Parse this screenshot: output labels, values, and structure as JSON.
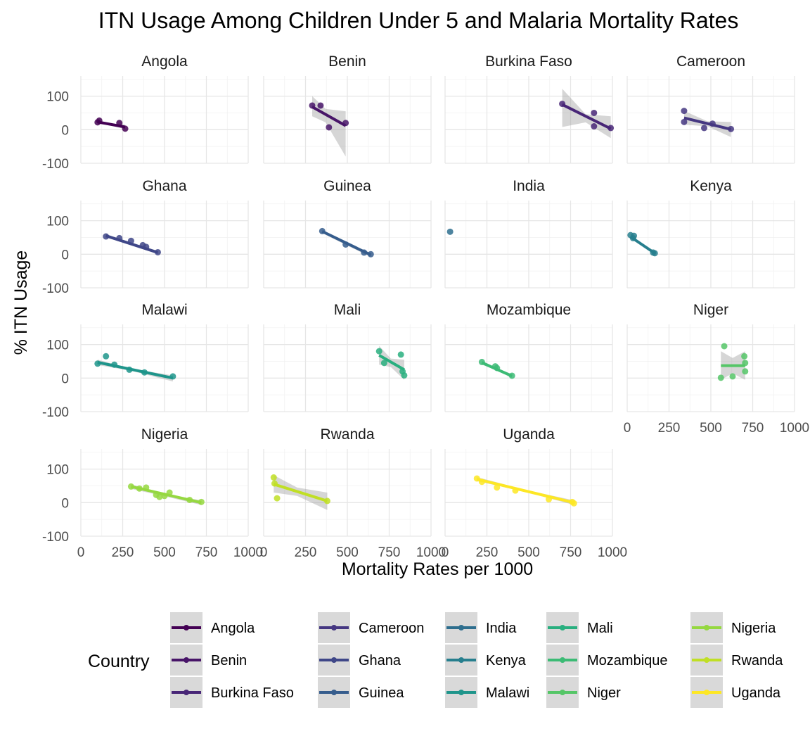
{
  "chart_data": {
    "type": "scatter",
    "title": "ITN Usage Among Children Under 5 and Malaria Mortality Rates",
    "xlabel": "Mortality Rates per 1000",
    "ylabel": "% ITN Usage",
    "xlim": [
      0,
      1000
    ],
    "ylim": [
      -100,
      160
    ],
    "x_ticks": [
      "0",
      "250",
      "500",
      "750",
      "1000"
    ],
    "y_ticks": [
      "100",
      "0",
      "-100"
    ],
    "grid": true,
    "legend": {
      "title": "Country",
      "position": "bottom",
      "items": [
        "Angola",
        "Benin",
        "Burkina Faso",
        "Cameroon",
        "Ghana",
        "Guinea",
        "India",
        "Kenya",
        "Malawi",
        "Mali",
        "Mozambique",
        "Niger",
        "Nigeria",
        "Rwanda",
        "Uganda"
      ]
    },
    "panels": [
      {
        "country": "Angola",
        "color": "#440154",
        "points": [
          [
            100,
            22
          ],
          [
            110,
            27
          ],
          [
            230,
            20
          ],
          [
            265,
            3
          ]
        ],
        "fit": [
          [
            100,
            23
          ],
          [
            265,
            8
          ]
        ],
        "band": [
          [
            100,
            28,
            17
          ],
          [
            180,
            19,
            13
          ],
          [
            265,
            15,
            1
          ]
        ]
      },
      {
        "country": "Benin",
        "color": "#481568",
        "points": [
          [
            290,
            72
          ],
          [
            340,
            72
          ],
          [
            390,
            7
          ],
          [
            490,
            20
          ]
        ],
        "fit": [
          [
            290,
            68
          ],
          [
            490,
            12
          ]
        ],
        "band": [
          [
            290,
            100,
            40
          ],
          [
            370,
            62,
            22
          ],
          [
            490,
            55,
            -80
          ]
        ]
      },
      {
        "country": "Burkina Faso",
        "color": "#482677",
        "points": [
          [
            700,
            77
          ],
          [
            890,
            50
          ],
          [
            890,
            10
          ],
          [
            990,
            5
          ]
        ],
        "fit": [
          [
            700,
            75
          ],
          [
            990,
            3
          ]
        ],
        "band": [
          [
            700,
            122,
            8
          ],
          [
            840,
            46,
            22
          ],
          [
            990,
            40,
            -25
          ]
        ]
      },
      {
        "country": "Cameroon",
        "color": "#453781",
        "points": [
          [
            340,
            56
          ],
          [
            340,
            23
          ],
          [
            460,
            5
          ],
          [
            510,
            18
          ],
          [
            620,
            2
          ]
        ],
        "fit": [
          [
            340,
            35
          ],
          [
            620,
            1
          ]
        ],
        "band": [
          [
            340,
            56,
            15
          ],
          [
            480,
            25,
            10
          ],
          [
            620,
            23,
            -22
          ]
        ]
      },
      {
        "country": "Ghana",
        "color": "#3F4788",
        "points": [
          [
            150,
            53
          ],
          [
            230,
            48
          ],
          [
            300,
            40
          ],
          [
            370,
            27
          ],
          [
            390,
            22
          ],
          [
            460,
            6
          ]
        ],
        "fit": [
          [
            150,
            55
          ],
          [
            460,
            5
          ]
        ],
        "band": [
          [
            150,
            60,
            50
          ],
          [
            300,
            34,
            28
          ],
          [
            460,
            10,
            0
          ]
        ]
      },
      {
        "country": "Guinea",
        "color": "#365D8D",
        "points": [
          [
            350,
            69
          ],
          [
            490,
            29
          ],
          [
            600,
            5
          ],
          [
            640,
            0
          ]
        ],
        "fit": [
          [
            350,
            68
          ],
          [
            640,
            -2
          ]
        ],
        "band": [
          [
            350,
            73,
            63
          ],
          [
            490,
            36,
            28
          ],
          [
            640,
            4,
            -8
          ]
        ]
      },
      {
        "country": "India",
        "color": "#2E6E8E",
        "points": [
          [
            30,
            67
          ]
        ],
        "fit": [],
        "band": []
      },
      {
        "country": "Kenya",
        "color": "#277F8E",
        "points": [
          [
            20,
            57
          ],
          [
            35,
            48
          ],
          [
            40,
            55
          ],
          [
            155,
            5
          ],
          [
            165,
            3
          ]
        ],
        "fit": [
          [
            20,
            52
          ],
          [
            165,
            3
          ]
        ],
        "band": [
          [
            20,
            58,
            46
          ],
          [
            90,
            31,
            25
          ],
          [
            165,
            8,
            -2
          ]
        ]
      },
      {
        "country": "Malawi",
        "color": "#1F958B",
        "points": [
          [
            100,
            43
          ],
          [
            150,
            65
          ],
          [
            200,
            40
          ],
          [
            290,
            25
          ],
          [
            380,
            17
          ],
          [
            550,
            5
          ]
        ],
        "fit": [
          [
            100,
            47
          ],
          [
            550,
            0
          ]
        ],
        "band": [
          [
            100,
            55,
            39
          ],
          [
            300,
            28,
            22
          ],
          [
            550,
            8,
            -10
          ]
        ]
      },
      {
        "country": "Mali",
        "color": "#29AF7F",
        "points": [
          [
            690,
            80
          ],
          [
            720,
            45
          ],
          [
            820,
            70
          ],
          [
            830,
            20
          ],
          [
            840,
            8
          ]
        ],
        "fit": [
          [
            690,
            68
          ],
          [
            840,
            25
          ]
        ],
        "band": [
          [
            690,
            96,
            40
          ],
          [
            760,
            58,
            33
          ],
          [
            840,
            55,
            -5
          ]
        ]
      },
      {
        "country": "Mozambique",
        "color": "#3CBB75",
        "points": [
          [
            220,
            48
          ],
          [
            300,
            35
          ],
          [
            310,
            30
          ],
          [
            400,
            7
          ]
        ],
        "fit": [
          [
            220,
            46
          ],
          [
            400,
            6
          ]
        ],
        "band": [
          [
            220,
            52,
            40
          ],
          [
            310,
            29,
            23
          ],
          [
            400,
            12,
            0
          ]
        ]
      },
      {
        "country": "Niger",
        "color": "#55C667",
        "points": [
          [
            560,
            1
          ],
          [
            580,
            95
          ],
          [
            630,
            5
          ],
          [
            700,
            65
          ],
          [
            705,
            20
          ],
          [
            705,
            45
          ]
        ],
        "fit": [
          [
            560,
            37
          ],
          [
            705,
            37
          ]
        ],
        "band": [
          [
            560,
            80,
            -5
          ],
          [
            630,
            60,
            14
          ],
          [
            705,
            80,
            -5
          ]
        ]
      },
      {
        "country": "Nigeria",
        "color": "#95D840",
        "points": [
          [
            300,
            48
          ],
          [
            350,
            42
          ],
          [
            390,
            45
          ],
          [
            450,
            23
          ],
          [
            470,
            17
          ],
          [
            500,
            20
          ],
          [
            530,
            30
          ],
          [
            650,
            8
          ],
          [
            720,
            2
          ]
        ],
        "fit": [
          [
            300,
            48
          ],
          [
            720,
            0
          ]
        ],
        "band": [
          [
            300,
            55,
            41
          ],
          [
            500,
            25,
            19
          ],
          [
            720,
            7,
            -7
          ]
        ]
      },
      {
        "country": "Rwanda",
        "color": "#C0DF25",
        "points": [
          [
            60,
            75
          ],
          [
            65,
            57
          ],
          [
            80,
            13
          ],
          [
            380,
            5
          ]
        ],
        "fit": [
          [
            60,
            55
          ],
          [
            380,
            5
          ]
        ],
        "band": [
          [
            60,
            82,
            30
          ],
          [
            200,
            45,
            20
          ],
          [
            380,
            30,
            -22
          ]
        ]
      },
      {
        "country": "Uganda",
        "color": "#FDE725",
        "points": [
          [
            190,
            72
          ],
          [
            220,
            62
          ],
          [
            310,
            45
          ],
          [
            420,
            36
          ],
          [
            620,
            10
          ],
          [
            760,
            2
          ],
          [
            770,
            -2
          ]
        ],
        "fit": [
          [
            190,
            70
          ],
          [
            770,
            0
          ]
        ],
        "band": [
          [
            190,
            76,
            64
          ],
          [
            480,
            38,
            32
          ],
          [
            770,
            7,
            -7
          ]
        ]
      }
    ]
  }
}
